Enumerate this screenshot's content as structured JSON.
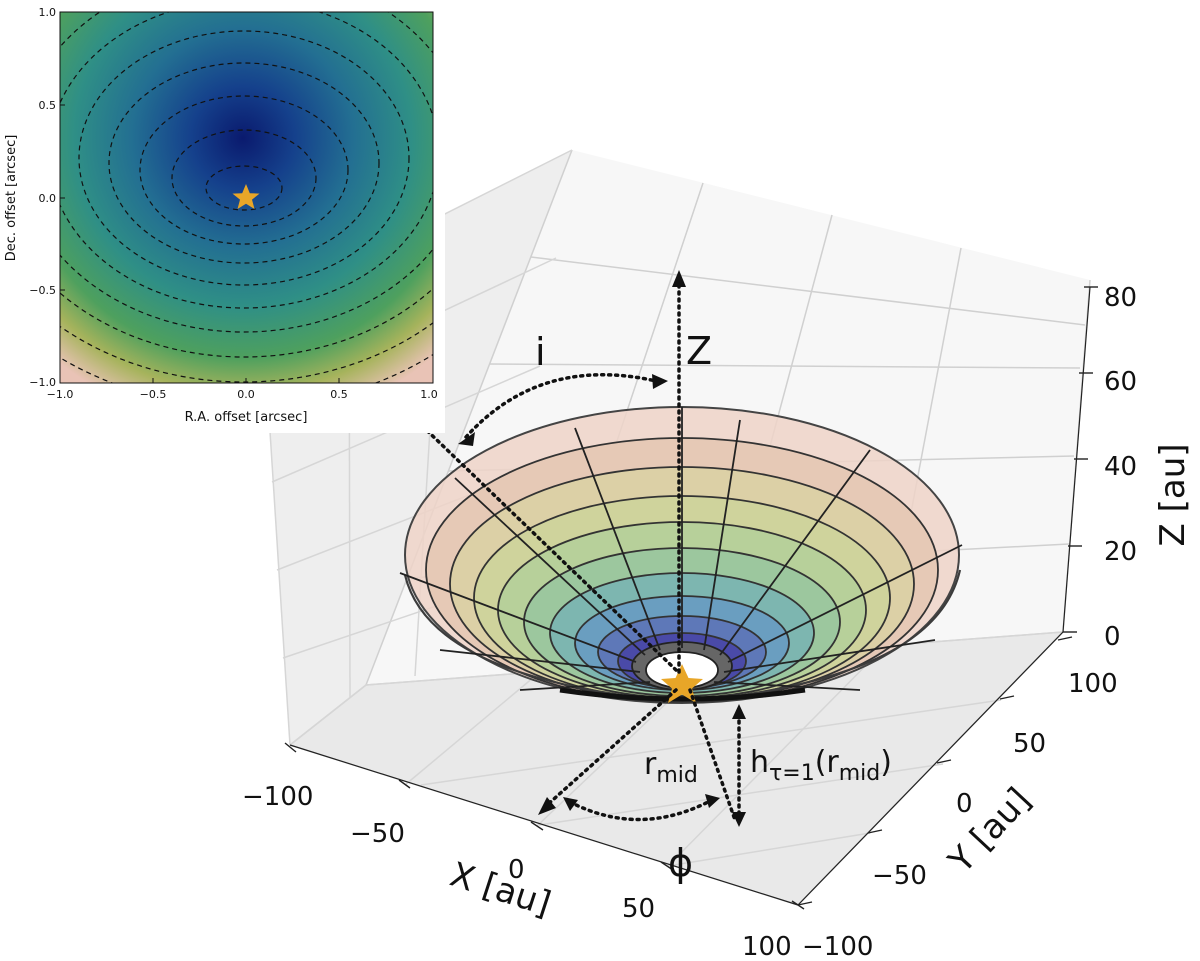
{
  "inset": {
    "x_ticks": [
      "−1.0",
      "−0.5",
      "0.0",
      "0.5",
      "1.0"
    ],
    "y_ticks": [
      "1.0",
      "0.5",
      "0.0",
      "−0.5",
      "−1.0"
    ],
    "xlabel": "R.A. offset [arcsec]",
    "ylabel": "Dec. offset [arcsec]",
    "star_icon": "star-icon",
    "star_color": "#e8a628"
  },
  "plot3d": {
    "z_ticks": [
      "0",
      "20",
      "40",
      "60",
      "80"
    ],
    "y_ticks": [
      "−100",
      "−50",
      "0",
      "50",
      "100"
    ],
    "x_ticks": [
      "−100",
      "−50",
      "0",
      "50",
      "100"
    ],
    "zlabel": "Z [au]",
    "ylabel": "Y [au]",
    "xlabel": "X [au]"
  },
  "annotations": {
    "i": "i",
    "z": "Z",
    "phi": "ϕ",
    "r": "r",
    "r_sub": "mid",
    "h": "h",
    "h_sub": "τ=1",
    "h_paren_open": "(r",
    "h_paren_sub": "mid",
    "h_paren_close": ")"
  },
  "colors": {
    "inner_hole": "#666666",
    "ring_colors": [
      "#4a4aa8",
      "#5e78b8",
      "#6a9ec0",
      "#7db6b0",
      "#9cc79e",
      "#b7d09a",
      "#cfd39c",
      "#dcd0a6",
      "#e6c9b6",
      "#efd3c8"
    ],
    "star": "#e8a628"
  }
}
